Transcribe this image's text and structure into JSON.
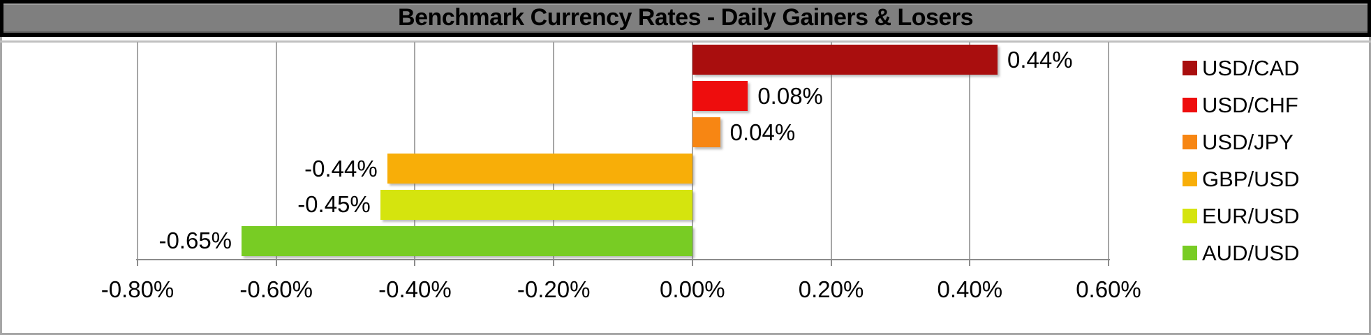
{
  "chart_data": {
    "type": "bar",
    "orientation": "horizontal",
    "title": "Benchmark Currency Rates - Daily Gainers & Losers",
    "categories": [
      "USD/CAD",
      "USD/CHF",
      "USD/JPY",
      "GBP/USD",
      "EUR/USD",
      "AUD/USD"
    ],
    "values": [
      0.44,
      0.08,
      0.04,
      -0.44,
      -0.45,
      -0.65
    ],
    "value_labels": [
      "0.44%",
      "0.08%",
      "0.04%",
      "-0.44%",
      "-0.45%",
      "-0.65%"
    ],
    "bar_colors": [
      "#A90E0E",
      "#EE0D0D",
      "#F78613",
      "#F8AE08",
      "#D5E40E",
      "#78CC24"
    ],
    "xlabel": "",
    "ylabel": "",
    "xlim": [
      -0.8,
      0.6
    ],
    "x_ticks": [
      -0.8,
      -0.6,
      -0.4,
      -0.2,
      0.0,
      0.2,
      0.4,
      0.6
    ],
    "x_tick_labels": [
      "-0.80%",
      "-0.60%",
      "-0.40%",
      "-0.20%",
      "0.00%",
      "0.20%",
      "0.40%",
      "0.60%"
    ],
    "grid": "vertical",
    "legend_position": "right",
    "legend_entries": [
      "USD/CAD",
      "USD/CHF",
      "USD/JPY",
      "GBP/USD",
      "EUR/USD",
      "AUD/USD"
    ]
  },
  "colors": {
    "title_bar_bg": "#7F7F7F",
    "title_text": "#000000",
    "banner_border": "#000000",
    "chart_bg": "#FFFFFF",
    "outer_border": "#A6A6A6",
    "gridline": "#A6A6A6",
    "axis_line": "#8C8C8C",
    "label_text": "#000000"
  }
}
